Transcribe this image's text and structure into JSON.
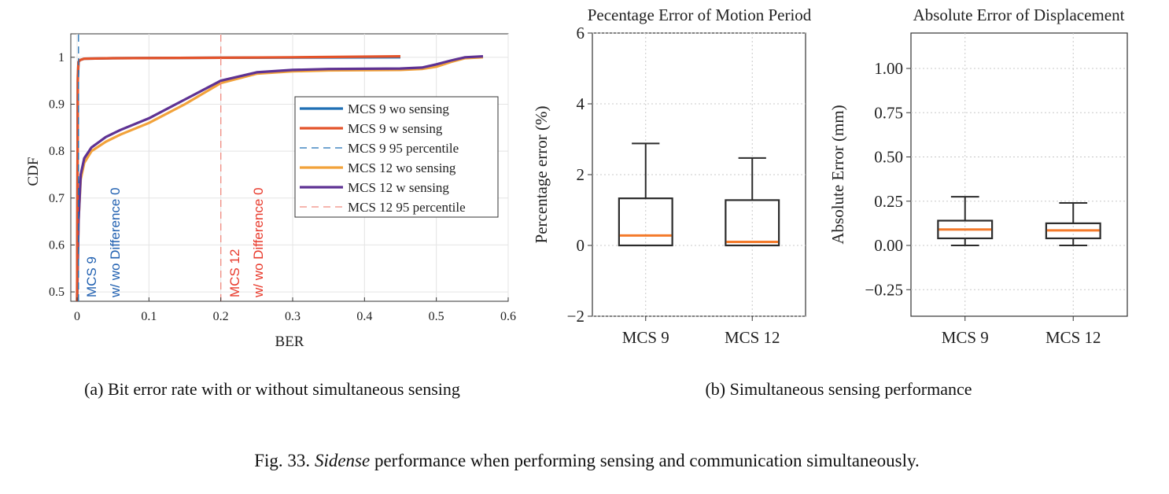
{
  "chart_data": [
    {
      "type": "line",
      "xlabel": "BER",
      "ylabel": "CDF",
      "xlim": [
        0,
        0.6
      ],
      "ylim": [
        0.48,
        1.05
      ],
      "xticks": [
        "0",
        "0.1",
        "0.2",
        "0.3",
        "0.4",
        "0.5",
        "0.6"
      ],
      "yticks": [
        "0.5",
        "0.6",
        "0.7",
        "0.8",
        "0.9",
        "1"
      ],
      "grid": true,
      "legend_position": "right",
      "series": [
        {
          "name": "MCS 9  wo sensing",
          "color": "#1f6fb4",
          "style": "solid",
          "x": [
            0,
            0.001,
            0.002,
            0.004,
            0.01,
            0.05,
            0.2,
            0.45
          ],
          "y": [
            0.48,
            0.95,
            0.99,
            0.994,
            0.997,
            0.998,
            0.999,
            1.0
          ]
        },
        {
          "name": "MCS 9  w sensing",
          "color": "#e3532a",
          "style": "solid",
          "x": [
            0,
            0.001,
            0.002,
            0.004,
            0.01,
            0.05,
            0.2,
            0.3,
            0.45
          ],
          "y": [
            0.48,
            0.96,
            0.99,
            0.994,
            0.997,
            0.998,
            0.999,
            1.0,
            1.002
          ]
        },
        {
          "name": "MCS 9  95 percentile",
          "color": "#1f6fb4",
          "style": "dashed",
          "x": [
            0.002,
            0.002
          ],
          "y": [
            0.48,
            1.05
          ]
        },
        {
          "name": "MCS 12 wo sensing",
          "color": "#f2a23a",
          "style": "solid",
          "x": [
            0,
            0.002,
            0.005,
            0.01,
            0.02,
            0.04,
            0.06,
            0.1,
            0.15,
            0.2,
            0.25,
            0.3,
            0.35,
            0.45,
            0.48,
            0.5,
            0.52,
            0.54,
            0.565
          ],
          "y": [
            0.48,
            0.65,
            0.74,
            0.775,
            0.8,
            0.82,
            0.835,
            0.86,
            0.9,
            0.945,
            0.965,
            0.97,
            0.972,
            0.973,
            0.975,
            0.98,
            0.99,
            0.998,
            1.0
          ]
        },
        {
          "name": "MCS 12 w sensing",
          "color": "#5e3293",
          "style": "solid",
          "x": [
            0,
            0.002,
            0.005,
            0.01,
            0.02,
            0.04,
            0.06,
            0.1,
            0.15,
            0.2,
            0.25,
            0.3,
            0.35,
            0.45,
            0.48,
            0.5,
            0.52,
            0.54,
            0.565
          ],
          "y": [
            0.48,
            0.65,
            0.75,
            0.785,
            0.808,
            0.83,
            0.845,
            0.87,
            0.91,
            0.95,
            0.968,
            0.973,
            0.975,
            0.976,
            0.978,
            0.985,
            0.993,
            1.0,
            1.002
          ]
        },
        {
          "name": "MCS 12 95 percentile",
          "color": "#f08a7e",
          "style": "dashed",
          "x": [
            0.2,
            0.2
          ],
          "y": [
            0.48,
            1.05
          ]
        }
      ],
      "annotations": [
        {
          "line1": "MCS 9",
          "line2": "w/ wo Difference 0",
          "color": "#1f5fb0"
        },
        {
          "line1": "MCS 12",
          "line2": "w/ wo Difference 0",
          "color": "#e8392b"
        }
      ]
    },
    {
      "type": "box",
      "title": "Pecentage Error of Motion Period",
      "ylabel": "Percentage error (%)",
      "ylim": [
        -2,
        6
      ],
      "yticks": [
        "−2",
        "0",
        "2",
        "4",
        "6"
      ],
      "categories": [
        "MCS 9",
        "MCS 12"
      ],
      "grid": true,
      "boxes": [
        {
          "whislo": 0,
          "q1": 0,
          "med": 0.28,
          "q3": 1.33,
          "whishi": 2.88
        },
        {
          "whislo": 0,
          "q1": 0,
          "med": 0.1,
          "q3": 1.28,
          "whishi": 2.47
        }
      ]
    },
    {
      "type": "box",
      "title": "Absolute Error of Displacement",
      "ylabel": "Absolute Error (mm)",
      "ylim": [
        -0.4,
        1.2
      ],
      "yticks": [
        "−0.25",
        "0.00",
        "0.25",
        "0.50",
        "0.75",
        "1.00"
      ],
      "categories": [
        "MCS 9",
        "MCS 12"
      ],
      "grid": true,
      "boxes": [
        {
          "whislo": 0,
          "q1": 0.04,
          "med": 0.09,
          "q3": 0.14,
          "whishi": 0.275
        },
        {
          "whislo": 0,
          "q1": 0.04,
          "med": 0.085,
          "q3": 0.125,
          "whishi": 0.24
        }
      ]
    }
  ],
  "captions": {
    "a": "(a)  Bit error rate with or without simultaneous sensing",
    "b": "(b)  Simultaneous sensing performance",
    "figure_prefix": "Fig. 33.  ",
    "figure_italic": "Sidense",
    "figure_rest": " performance when performing sensing and communication simultaneously."
  },
  "colors": {
    "median": "#f47a2a",
    "box": "#2b2b2b",
    "grid": "#c8c8c8"
  }
}
